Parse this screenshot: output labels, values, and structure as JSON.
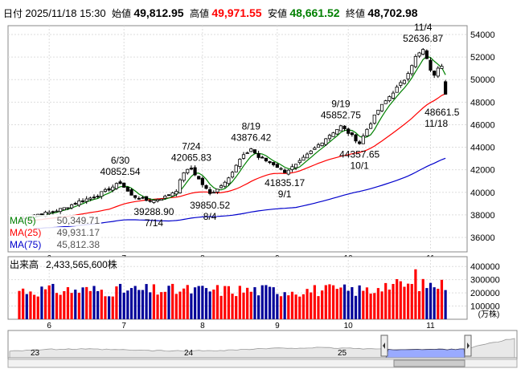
{
  "header": {
    "date_label": "日付",
    "datetime": "2025/11/18 15:30",
    "open_label": "始値",
    "open": "49,812.95",
    "high_label": "高値",
    "high": "49,971.55",
    "low_label": "安値",
    "low": "48,661.52",
    "close_label": "終値",
    "close": "48,702.98"
  },
  "colors": {
    "up": "#e8e8e8",
    "down": "#000000",
    "ma5": "#008000",
    "ma25": "#ff0000",
    "ma75": "#0000cc",
    "vol_up": "#ff0000",
    "vol_down": "#000099",
    "header_high": "#ff0000",
    "header_low": "#008000",
    "nav_fill": "#99aaff"
  },
  "chart_data": [
    {
      "type": "candlestick",
      "ylim": [
        35000,
        55000
      ],
      "yticks": [
        36000,
        38000,
        40000,
        42000,
        44000,
        46000,
        48000,
        50000,
        52000,
        54000
      ],
      "ytick_labels": [
        "36000",
        "38000",
        "40000",
        "42000",
        "44000",
        "46000",
        "48000",
        "50000",
        "52000",
        "54000"
      ],
      "xtick_labels": [
        "6",
        "7",
        "8",
        "9",
        "10",
        "11"
      ],
      "last_candle": {
        "open": 49812.95,
        "high": 49971.55,
        "low": 48661.52,
        "close": 48702.98
      },
      "annotations": [
        {
          "text_value": "6/30",
          "text_price": "40852.54",
          "value": 40852.54,
          "pos": "above"
        },
        {
          "text_value": "7/14",
          "text_price": "39288.90",
          "value": 39288.9,
          "pos": "below"
        },
        {
          "text_value": "7/24",
          "text_price": "42065.83",
          "value": 42065.83,
          "pos": "above"
        },
        {
          "text_value": "8/4",
          "text_price": "39850.52",
          "value": 39850.52,
          "pos": "below"
        },
        {
          "text_value": "8/19",
          "text_price": "43876.42",
          "value": 43876.42,
          "pos": "above"
        },
        {
          "text_value": "9/1",
          "text_price": "41835.17",
          "value": 41835.17,
          "pos": "below"
        },
        {
          "text_value": "9/19",
          "text_price": "45852.75",
          "value": 45852.75,
          "pos": "above"
        },
        {
          "text_value": "10/1",
          "text_price": "44357.65",
          "value": 44357.65,
          "pos": "below"
        },
        {
          "text_value": "11/4",
          "text_price": "52636.87",
          "value": 52636.87,
          "pos": "above"
        },
        {
          "text_value": "11/18",
          "text_price": "48661.5",
          "value": 48661.52,
          "pos": "right"
        }
      ],
      "legend": [
        {
          "label": "MA(5)",
          "value": "50,349.71"
        },
        {
          "label": "MA(25)",
          "value": "49,931.17"
        },
        {
          "label": "MA(75)",
          "value": "45,812.38"
        }
      ],
      "series": [
        {
          "name": "MA(5)"
        },
        {
          "name": "MA(25)"
        },
        {
          "name": "MA(75)"
        }
      ]
    },
    {
      "type": "bar",
      "title": "出来高",
      "latest": "2,433,565,600株",
      "ylim": [
        0,
        450000
      ],
      "yticks": [
        100000,
        200000,
        300000,
        400000
      ],
      "ytick_labels": [
        "100000",
        "200000",
        "300000",
        "400000"
      ],
      "unit": "(万株)",
      "xtick_labels": [
        "6",
        "7",
        "8",
        "9",
        "10",
        "11"
      ]
    },
    {
      "type": "area",
      "xtick_labels": [
        "23",
        "24",
        "25"
      ]
    }
  ]
}
